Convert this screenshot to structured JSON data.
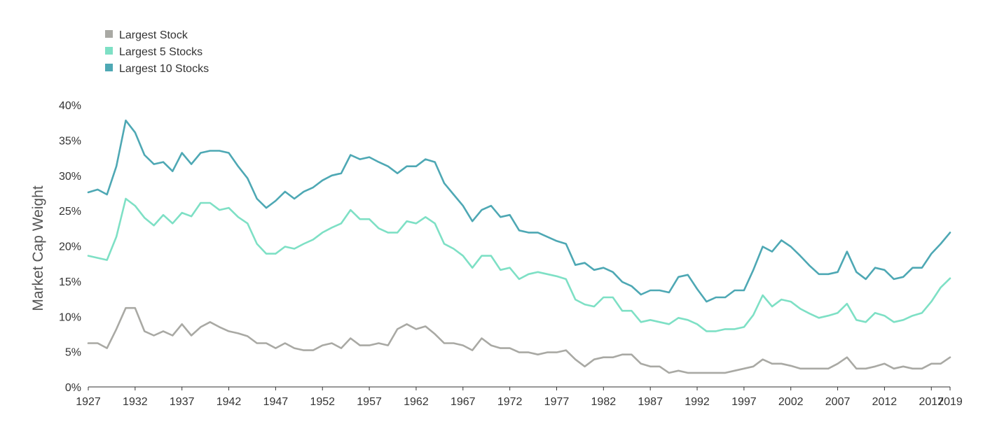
{
  "chart_data": {
    "type": "line",
    "title": "",
    "xlabel": "",
    "ylabel": "Market Cap Weight",
    "xlim": [
      1927,
      2019
    ],
    "ylim": [
      0,
      40
    ],
    "x_ticks": [
      1927,
      1932,
      1937,
      1942,
      1947,
      1952,
      1957,
      1962,
      1967,
      1972,
      1977,
      1982,
      1987,
      1992,
      1997,
      2002,
      2007,
      2012,
      2017,
      2019
    ],
    "x_tick_labels": [
      "1927",
      "1932",
      "1937",
      "1942",
      "1947",
      "1952",
      "1957",
      "1962",
      "1967",
      "1972",
      "1977",
      "1982",
      "1987",
      "1992",
      "1997",
      "2002",
      "2007",
      "2012",
      "2017",
      "2019"
    ],
    "y_ticks": [
      0,
      5,
      10,
      15,
      20,
      25,
      30,
      35,
      40
    ],
    "y_tick_labels": [
      "0%",
      "5%",
      "10%",
      "15%",
      "20%",
      "25%",
      "30%",
      "35%",
      "40%"
    ],
    "grid": false,
    "legend_position": "top-left",
    "x": [
      1927,
      1928,
      1929,
      1930,
      1931,
      1932,
      1933,
      1934,
      1935,
      1936,
      1937,
      1938,
      1939,
      1940,
      1941,
      1942,
      1943,
      1944,
      1945,
      1946,
      1947,
      1948,
      1949,
      1950,
      1951,
      1952,
      1953,
      1954,
      1955,
      1956,
      1957,
      1958,
      1959,
      1960,
      1961,
      1962,
      1963,
      1964,
      1965,
      1966,
      1967,
      1968,
      1969,
      1970,
      1971,
      1972,
      1973,
      1974,
      1975,
      1976,
      1977,
      1978,
      1979,
      1980,
      1981,
      1982,
      1983,
      1984,
      1985,
      1986,
      1987,
      1988,
      1989,
      1990,
      1991,
      1992,
      1993,
      1994,
      1995,
      1996,
      1997,
      1998,
      1999,
      2000,
      2001,
      2002,
      2003,
      2004,
      2005,
      2006,
      2007,
      2008,
      2009,
      2010,
      2011,
      2012,
      2013,
      2014,
      2015,
      2016,
      2017,
      2018,
      2019
    ],
    "series": [
      {
        "name": "Largest Stock",
        "color": "#a9a9a4",
        "values": [
          6.2,
          6.2,
          5.5,
          8.2,
          11.2,
          11.2,
          7.9,
          7.3,
          7.9,
          7.3,
          8.9,
          7.3,
          8.5,
          9.2,
          8.5,
          7.9,
          7.6,
          7.2,
          6.2,
          6.2,
          5.5,
          6.2,
          5.5,
          5.2,
          5.2,
          5.9,
          6.2,
          5.5,
          6.9,
          5.9,
          5.9,
          6.2,
          5.9,
          8.2,
          8.9,
          8.2,
          8.6,
          7.5,
          6.2,
          6.2,
          5.9,
          5.2,
          6.9,
          5.9,
          5.5,
          5.5,
          4.9,
          4.9,
          4.6,
          4.9,
          4.9,
          5.2,
          3.9,
          2.9,
          3.9,
          4.2,
          4.2,
          4.6,
          4.6,
          3.3,
          2.9,
          2.9,
          2.0,
          2.3,
          2.0,
          2.0,
          2.0,
          2.0,
          2.0,
          2.3,
          2.6,
          2.9,
          3.9,
          3.3,
          3.3,
          3.0,
          2.6,
          2.6,
          2.6,
          2.6,
          3.3,
          4.2,
          2.6,
          2.6,
          2.9,
          3.3,
          2.6,
          2.9,
          2.6,
          2.6,
          3.3,
          3.3,
          4.2
        ]
      },
      {
        "name": "Largest 5 Stocks",
        "color": "#7ee0c5",
        "values": [
          18.6,
          18.3,
          18.0,
          21.3,
          26.7,
          25.7,
          24.0,
          22.9,
          24.4,
          23.2,
          24.7,
          24.2,
          26.1,
          26.1,
          25.1,
          25.4,
          24.1,
          23.2,
          20.3,
          18.9,
          18.9,
          19.9,
          19.6,
          20.3,
          20.9,
          21.9,
          22.6,
          23.2,
          25.1,
          23.8,
          23.8,
          22.5,
          21.9,
          21.9,
          23.5,
          23.2,
          24.1,
          23.2,
          20.3,
          19.6,
          18.6,
          16.9,
          18.6,
          18.6,
          16.6,
          16.9,
          15.3,
          16.0,
          16.3,
          16.0,
          15.7,
          15.3,
          12.4,
          11.7,
          11.4,
          12.7,
          12.7,
          10.8,
          10.8,
          9.2,
          9.5,
          9.2,
          8.9,
          9.8,
          9.5,
          8.9,
          7.9,
          7.9,
          8.2,
          8.2,
          8.5,
          10.2,
          13.0,
          11.4,
          12.4,
          12.1,
          11.1,
          10.4,
          9.8,
          10.1,
          10.5,
          11.8,
          9.5,
          9.2,
          10.5,
          10.1,
          9.2,
          9.5,
          10.1,
          10.5,
          12.1,
          14.1,
          15.4
        ]
      },
      {
        "name": "Largest 10 Stocks",
        "color": "#4ea8b4",
        "values": [
          27.6,
          28.0,
          27.3,
          31.3,
          37.8,
          36.1,
          32.9,
          31.6,
          31.9,
          30.6,
          33.2,
          31.6,
          33.2,
          33.5,
          33.5,
          33.2,
          31.3,
          29.6,
          26.7,
          25.4,
          26.4,
          27.7,
          26.7,
          27.7,
          28.3,
          29.3,
          30.0,
          30.3,
          32.9,
          32.3,
          32.6,
          31.9,
          31.3,
          30.3,
          31.3,
          31.3,
          32.3,
          31.9,
          28.9,
          27.3,
          25.7,
          23.5,
          25.1,
          25.7,
          24.1,
          24.4,
          22.2,
          21.9,
          21.9,
          21.3,
          20.7,
          20.3,
          17.3,
          17.6,
          16.6,
          16.9,
          16.3,
          14.9,
          14.3,
          13.1,
          13.7,
          13.7,
          13.4,
          15.6,
          15.9,
          13.9,
          12.1,
          12.7,
          12.7,
          13.7,
          13.7,
          16.6,
          19.9,
          19.2,
          20.8,
          19.9,
          18.6,
          17.2,
          16.0,
          16.0,
          16.3,
          19.2,
          16.3,
          15.3,
          16.9,
          16.6,
          15.3,
          15.6,
          16.9,
          16.9,
          18.9,
          20.3,
          21.9
        ]
      }
    ]
  }
}
